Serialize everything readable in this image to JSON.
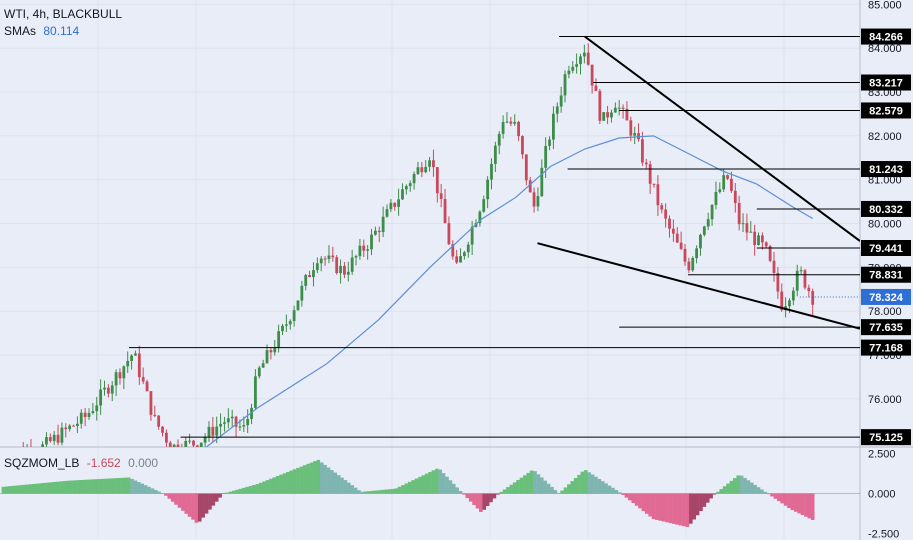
{
  "legend": {
    "symbol": "WTI, 4h, BLACKBULL",
    "sma_label": "SMAs",
    "sma_value": "80.114",
    "osc_label": "SQZMOM_LB",
    "osc_value1": "-1.652",
    "osc_value2": "0.000"
  },
  "colors": {
    "bg": "#e9edf7",
    "up": "#3d8c4a",
    "down": "#c9485b",
    "sma": "#5b8fd6",
    "line": "#000000",
    "current_tag": "#2e6fd6",
    "osc_green": "#6abf7a",
    "osc_teal": "#7fb5b0",
    "osc_pink": "#e06a94"
  },
  "chart_data": {
    "type": "candlestick",
    "price_axis": {
      "ticks": [
        "85.000",
        "84.000",
        "83.000",
        "82.000",
        "81.000",
        "80.000",
        "79.000",
        "78.000",
        "77.000",
        "76.000"
      ],
      "tick_values": [
        85,
        84,
        83,
        82,
        81,
        80,
        79,
        78,
        77,
        76
      ],
      "ylim": [
        74.9,
        85.1
      ]
    },
    "osc_axis": {
      "ticks": [
        "2.500",
        "0.000",
        "-2.500"
      ],
      "tick_values": [
        2.5,
        0,
        -2.5
      ],
      "ylim": [
        -2.9,
        2.9
      ]
    },
    "levels": [
      {
        "label": "84.266",
        "value": 84.266,
        "from": 0.65
      },
      {
        "label": "83.217",
        "value": 83.217,
        "from": 0.69
      },
      {
        "label": "82.579",
        "value": 82.579,
        "from": 0.72
      },
      {
        "label": "81.243",
        "value": 81.243,
        "from": 0.66
      },
      {
        "label": "80.332",
        "value": 80.332,
        "from": 0.88
      },
      {
        "label": "79.441",
        "value": 79.441,
        "from": 0.88
      },
      {
        "label": "78.831",
        "value": 78.831,
        "from": 0.8
      },
      {
        "label": "77.635",
        "value": 77.635,
        "from": 0.72
      },
      {
        "label": "77.168",
        "value": 77.168,
        "from": 0.15
      },
      {
        "label": "75.125",
        "value": 75.125,
        "from": 0.21
      }
    ],
    "current": {
      "label": "78.324",
      "value": 78.324
    },
    "trendlines": [
      {
        "from": [
          0.68,
          84.266
        ],
        "to": [
          1.0,
          79.6
        ]
      },
      {
        "from": [
          0.625,
          79.55
        ],
        "to": [
          1.0,
          77.6
        ]
      }
    ],
    "anchors": [
      [
        0.0,
        74.7
      ],
      [
        0.05,
        74.9
      ],
      [
        0.1,
        75.6
      ],
      [
        0.155,
        77.05
      ],
      [
        0.18,
        75.5
      ],
      [
        0.2,
        74.9
      ],
      [
        0.23,
        75.0
      ],
      [
        0.26,
        75.5
      ],
      [
        0.285,
        75.3
      ],
      [
        0.3,
        76.6
      ],
      [
        0.33,
        77.6
      ],
      [
        0.37,
        79.3
      ],
      [
        0.4,
        78.9
      ],
      [
        0.43,
        79.6
      ],
      [
        0.47,
        80.8
      ],
      [
        0.5,
        81.6
      ],
      [
        0.515,
        80.2
      ],
      [
        0.53,
        78.9
      ],
      [
        0.56,
        80.5
      ],
      [
        0.585,
        82.4
      ],
      [
        0.6,
        82.2
      ],
      [
        0.62,
        80.3
      ],
      [
        0.64,
        82.1
      ],
      [
        0.66,
        83.6
      ],
      [
        0.68,
        84.0
      ],
      [
        0.7,
        82.3
      ],
      [
        0.715,
        82.8
      ],
      [
        0.74,
        81.9
      ],
      [
        0.77,
        80.2
      ],
      [
        0.8,
        79.0
      ],
      [
        0.82,
        80.1
      ],
      [
        0.845,
        81.1
      ],
      [
        0.86,
        80.0
      ],
      [
        0.89,
        79.4
      ],
      [
        0.91,
        78.1
      ],
      [
        0.93,
        78.9
      ],
      [
        0.945,
        78.32
      ]
    ],
    "sma_points": [
      [
        0.24,
        74.9
      ],
      [
        0.3,
        75.8
      ],
      [
        0.38,
        76.8
      ],
      [
        0.44,
        77.8
      ],
      [
        0.5,
        79.0
      ],
      [
        0.56,
        80.1
      ],
      [
        0.6,
        80.6
      ],
      [
        0.64,
        81.3
      ],
      [
        0.68,
        81.7
      ],
      [
        0.72,
        81.95
      ],
      [
        0.76,
        82.0
      ],
      [
        0.8,
        81.6
      ],
      [
        0.84,
        81.2
      ],
      [
        0.88,
        80.9
      ],
      [
        0.92,
        80.4
      ],
      [
        0.945,
        80.114
      ]
    ],
    "osc_anchors": [
      [
        0.0,
        0.4
      ],
      [
        0.08,
        0.8
      ],
      [
        0.15,
        1.0
      ],
      [
        0.19,
        0.0
      ],
      [
        0.23,
        -1.9
      ],
      [
        0.26,
        0.0
      ],
      [
        0.3,
        0.6
      ],
      [
        0.37,
        2.1
      ],
      [
        0.42,
        0.1
      ],
      [
        0.46,
        0.3
      ],
      [
        0.51,
        1.6
      ],
      [
        0.54,
        -0.1
      ],
      [
        0.56,
        -1.2
      ],
      [
        0.58,
        0.0
      ],
      [
        0.62,
        1.5
      ],
      [
        0.65,
        0.0
      ],
      [
        0.68,
        1.5
      ],
      [
        0.72,
        0.1
      ],
      [
        0.76,
        -1.6
      ],
      [
        0.8,
        -2.1
      ],
      [
        0.83,
        -0.1
      ],
      [
        0.86,
        1.2
      ],
      [
        0.89,
        0.1
      ],
      [
        0.92,
        -1.0
      ],
      [
        0.945,
        -1.652
      ]
    ]
  }
}
